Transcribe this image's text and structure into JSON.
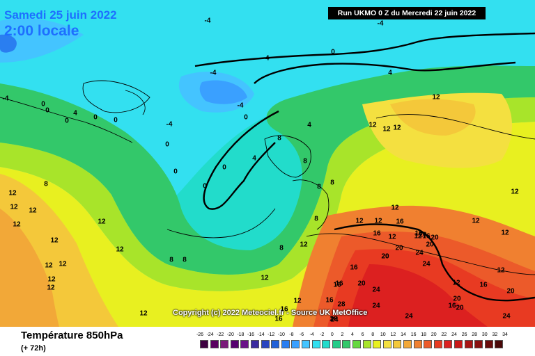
{
  "header": {
    "date_line": "Samedi 25 juin 2022",
    "time_line": "2:00 locale",
    "run_info": "Run UKMO 0 Z du Mercredi 22 juin 2022"
  },
  "copyright": "Copyright (c) 2022 Meteociel.fr - Source UK MetOffice",
  "footer": {
    "title": "Température 850hPa",
    "subtitle": "(+ 72h)"
  },
  "legend": {
    "values": [
      "-26",
      "-24",
      "-22",
      "-20",
      "-18",
      "-16",
      "-14",
      "-12",
      "-10",
      "-8",
      "-6",
      "-4",
      "-2",
      "0",
      "2",
      "4",
      "6",
      "8",
      "10",
      "12",
      "14",
      "16",
      "18",
      "20",
      "22",
      "24",
      "26",
      "28",
      "30",
      "32",
      "34"
    ],
    "colors": [
      "#3d0040",
      "#5a0060",
      "#7a1a7a",
      "#560070",
      "#6a1288",
      "#3a2aa0",
      "#2a45c0",
      "#2060d8",
      "#2a7ef0",
      "#3aa0ff",
      "#44c4ff",
      "#33e0f0",
      "#22dccb",
      "#22cc88",
      "#33c86a",
      "#66d840",
      "#a8e42a",
      "#e8f020",
      "#f4e040",
      "#f4c83a",
      "#f2a838",
      "#f08030",
      "#ec5a2a",
      "#e83a22",
      "#dc2020",
      "#c81818",
      "#a81414",
      "#881010",
      "#6a0c0c",
      "#4a0808"
    ],
    "colors_by_step": [
      "#3d0040",
      "#5a0060",
      "#7a1a7a",
      "#560070",
      "#6a1288",
      "#3a2aa0",
      "#2a45c0",
      "#2060d8",
      "#2a7ef0",
      "#3aa0ff",
      "#44c4ff",
      "#33e0f0",
      "#22dccb",
      "#22cc88",
      "#33c86a",
      "#66d840",
      "#a8e42a",
      "#e8f020",
      "#f4e040",
      "#f4c83a",
      "#f2a838",
      "#f08030",
      "#ec5a2a",
      "#e83a22",
      "#dc2020",
      "#c81818",
      "#a81414",
      "#881010",
      "#6a0c0c",
      "#4a0808"
    ]
  },
  "contour_labels": [
    "-4",
    "-4",
    "-4",
    "-4",
    "-4",
    "-4",
    "0",
    "0",
    "0",
    "0",
    "0",
    "0",
    "0",
    "0",
    "0",
    "0",
    "0",
    "-4",
    "4",
    "4",
    "4",
    "4",
    "8",
    "8",
    "8",
    "8",
    "8",
    "8",
    "8",
    "8",
    "8",
    "12",
    "12",
    "12",
    "12",
    "12",
    "12",
    "12",
    "12",
    "12",
    "12",
    "12",
    "12",
    "12",
    "12",
    "12",
    "12",
    "12",
    "12",
    "12",
    "12",
    "12",
    "12",
    "12",
    "12",
    "12",
    "12",
    "12",
    "12",
    "12",
    "16",
    "16",
    "16",
    "16",
    "16",
    "16",
    "16",
    "16",
    "16",
    "16",
    "16",
    "16",
    "20",
    "20",
    "20",
    "20",
    "20",
    "20",
    "20",
    "20",
    "20",
    "24",
    "24",
    "24",
    "24",
    "24",
    "24",
    "24",
    "28",
    "28",
    "20"
  ]
}
